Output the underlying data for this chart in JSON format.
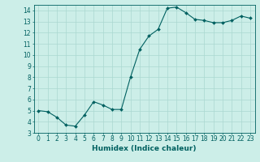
{
  "x": [
    0,
    1,
    2,
    3,
    4,
    5,
    6,
    7,
    8,
    9,
    10,
    11,
    12,
    13,
    14,
    15,
    16,
    17,
    18,
    19,
    20,
    21,
    22,
    23
  ],
  "y": [
    5.0,
    4.9,
    4.4,
    3.7,
    3.6,
    4.6,
    5.8,
    5.5,
    5.1,
    5.1,
    8.0,
    10.5,
    11.7,
    12.3,
    14.2,
    14.3,
    13.8,
    13.2,
    13.1,
    12.9,
    12.9,
    13.1,
    13.5,
    13.3
  ],
  "line_color": "#006060",
  "marker": "D",
  "marker_size": 2.0,
  "bg_color": "#cceee8",
  "grid_color": "#aad8d0",
  "xlabel": "Humidex (Indice chaleur)",
  "xlim": [
    -0.5,
    23.5
  ],
  "ylim": [
    3,
    14.5
  ],
  "yticks": [
    3,
    4,
    5,
    6,
    7,
    8,
    9,
    10,
    11,
    12,
    13,
    14
  ],
  "xticks": [
    0,
    1,
    2,
    3,
    4,
    5,
    6,
    7,
    8,
    9,
    10,
    11,
    12,
    13,
    14,
    15,
    16,
    17,
    18,
    19,
    20,
    21,
    22,
    23
  ],
  "tick_fontsize": 5.5,
  "label_fontsize": 6.5
}
